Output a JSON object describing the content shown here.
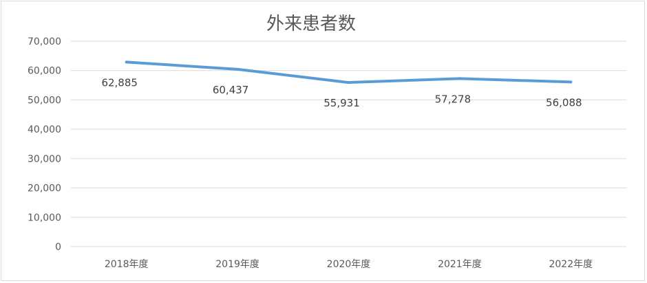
{
  "chart_data": {
    "type": "line",
    "title": "外来患者数",
    "xlabel": "",
    "ylabel": "",
    "categories": [
      "2018年度",
      "2019年度",
      "2020年度",
      "2021年度",
      "2022年度"
    ],
    "series": [
      {
        "values": [
          62885,
          60437,
          55931,
          57278,
          56088
        ],
        "data_labels": [
          "62,885",
          "60,437",
          "55,931",
          "57,278",
          "56,088"
        ],
        "color": "#5b9bd5"
      }
    ],
    "ylim": [
      0,
      70000
    ],
    "yticks": [
      0,
      10000,
      20000,
      30000,
      40000,
      50000,
      60000,
      70000
    ],
    "ytick_labels": [
      "0",
      "10,000",
      "20,000",
      "30,000",
      "40,000",
      "50,000",
      "60,000",
      "70,000"
    ],
    "grid": true,
    "gridline_color": "#d9d9d9",
    "legend": "none"
  }
}
